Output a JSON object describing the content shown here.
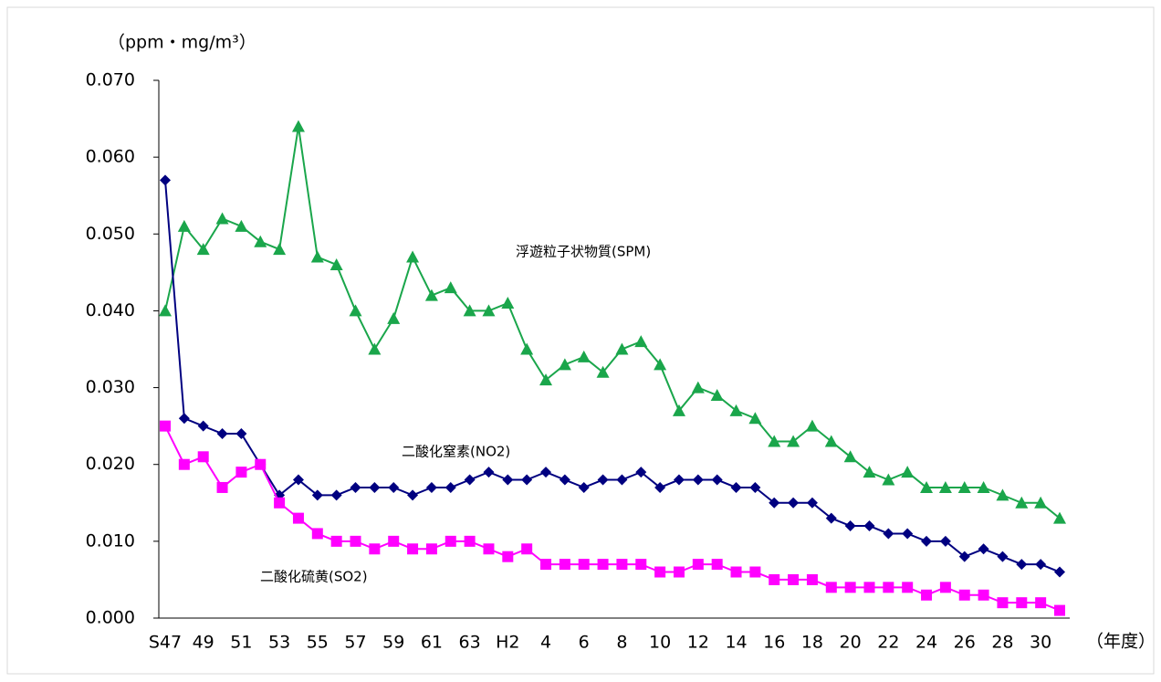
{
  "chart_data": {
    "type": "line",
    "y_label": "（ppm・mg/m³）",
    "x_label": "（年度）",
    "categories": [
      "S47",
      null,
      "49",
      null,
      "51",
      null,
      "53",
      null,
      "55",
      null,
      "57",
      null,
      "59",
      null,
      "61",
      null,
      "63",
      null,
      "H2",
      null,
      "4",
      null,
      "6",
      null,
      "8",
      null,
      "10",
      null,
      "12",
      null,
      "14",
      null,
      "16",
      null,
      "18",
      null,
      "20",
      null,
      "22",
      null,
      "24",
      null,
      "26",
      null,
      "28",
      null,
      "30",
      null
    ],
    "series": [
      {
        "name": "浮遊粒子状物質(SPM)",
        "color": "#1aa64b",
        "marker": "triangle",
        "values": [
          0.04,
          0.051,
          0.048,
          0.052,
          0.051,
          0.049,
          0.048,
          0.064,
          0.047,
          0.046,
          0.04,
          0.035,
          0.039,
          0.047,
          0.042,
          0.043,
          0.04,
          0.04,
          0.041,
          0.035,
          0.031,
          0.033,
          0.034,
          0.032,
          0.035,
          0.036,
          0.033,
          0.027,
          0.03,
          0.029,
          0.027,
          0.026,
          0.023,
          0.023,
          0.025,
          0.023,
          0.021,
          0.019,
          0.018,
          0.019,
          0.017,
          0.017,
          0.017,
          0.017,
          0.016,
          0.015,
          0.015,
          0.013
        ]
      },
      {
        "name": "二酸化窒素(NO2)",
        "color": "#000080",
        "marker": "diamond",
        "values": [
          0.057,
          0.026,
          0.025,
          0.024,
          0.024,
          0.02,
          0.016,
          0.018,
          0.016,
          0.016,
          0.017,
          0.017,
          0.017,
          0.016,
          0.017,
          0.017,
          0.018,
          0.019,
          0.018,
          0.018,
          0.019,
          0.018,
          0.017,
          0.018,
          0.018,
          0.019,
          0.017,
          0.018,
          0.018,
          0.018,
          0.017,
          0.017,
          0.015,
          0.015,
          0.015,
          0.013,
          0.012,
          0.012,
          0.011,
          0.011,
          0.01,
          0.01,
          0.008,
          0.009,
          0.008,
          0.007,
          0.007,
          0.006
        ]
      },
      {
        "name": "二酸化硫黄(SO2)",
        "color": "#ff00ff",
        "marker": "square",
        "values": [
          0.025,
          0.02,
          0.021,
          0.017,
          0.019,
          0.02,
          0.015,
          0.013,
          0.011,
          0.01,
          0.01,
          0.009,
          0.01,
          0.009,
          0.009,
          0.01,
          0.01,
          0.009,
          0.008,
          0.009,
          0.007,
          0.007,
          0.007,
          0.007,
          0.007,
          0.007,
          0.006,
          0.006,
          0.007,
          0.007,
          0.006,
          0.006,
          0.005,
          0.005,
          0.005,
          0.004,
          0.004,
          0.004,
          0.004,
          0.004,
          0.003,
          0.004,
          0.003,
          0.003,
          0.002,
          0.002,
          0.002,
          0.001
        ]
      }
    ],
    "ylim": [
      0,
      0.07
    ],
    "yticks": [
      {
        "value": 0,
        "label": "0.000"
      },
      {
        "value": 0.01,
        "label": "0.010"
      },
      {
        "value": 0.02,
        "label": "0.020"
      },
      {
        "value": 0.03,
        "label": "0.030"
      },
      {
        "value": 0.04,
        "label": "0.040"
      },
      {
        "value": 0.05,
        "label": "0.050"
      },
      {
        "value": 0.06,
        "label": "0.060"
      },
      {
        "value": 0.07,
        "label": "0.070"
      }
    ],
    "grid": false
  }
}
